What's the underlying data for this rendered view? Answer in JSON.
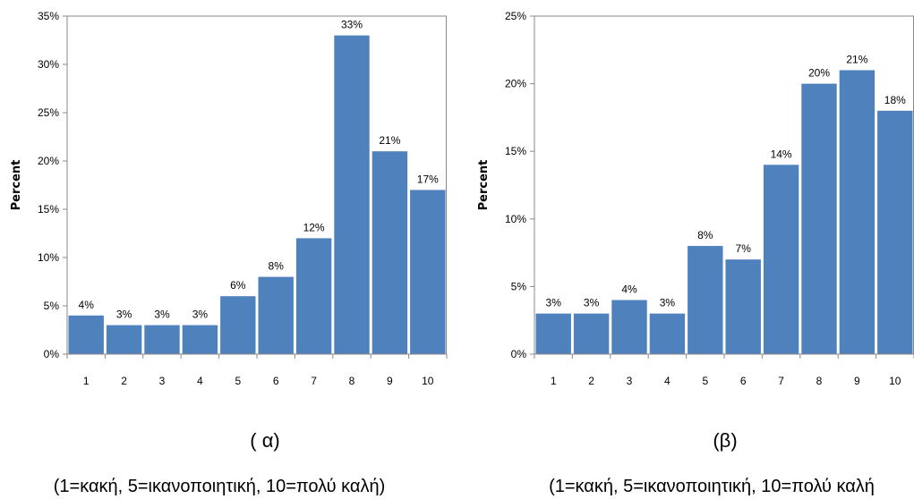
{
  "chart_data": [
    {
      "type": "bar",
      "categories": [
        "1",
        "2",
        "3",
        "4",
        "5",
        "6",
        "7",
        "8",
        "9",
        "10"
      ],
      "values": [
        4,
        3,
        3,
        3,
        6,
        8,
        12,
        33,
        21,
        17
      ],
      "data_labels": [
        "4%",
        "3%",
        "3%",
        "3%",
        "6%",
        "8%",
        "12%",
        "33%",
        "21%",
        "17%"
      ],
      "ylabel": "Percent",
      "ylim": [
        0,
        35
      ],
      "yticks": [
        "0%",
        "5%",
        "10%",
        "15%",
        "20%",
        "25%",
        "30%",
        "35%"
      ],
      "grid": false,
      "bar_color": "#4f81bd",
      "panel_label": "( α)",
      "caption": "(1=κακή, 5=ικανοποιητική, 10=πολύ καλή)"
    },
    {
      "type": "bar",
      "categories": [
        "1",
        "2",
        "3",
        "4",
        "5",
        "6",
        "7",
        "8",
        "9",
        "10"
      ],
      "values": [
        3,
        3,
        4,
        3,
        8,
        7,
        14,
        20,
        21,
        18
      ],
      "data_labels": [
        "3%",
        "3%",
        "4%",
        "3%",
        "8%",
        "7%",
        "14%",
        "20%",
        "21%",
        "18%"
      ],
      "ylabel": "Percent",
      "ylim": [
        0,
        25
      ],
      "yticks": [
        "0%",
        "5%",
        "10%",
        "15%",
        "20%",
        "25%"
      ],
      "grid": false,
      "bar_color": "#4f81bd",
      "panel_label": "(β)",
      "caption": "(1=κακή, 5=ικανοποιητική, 10=πολύ καλή"
    }
  ]
}
